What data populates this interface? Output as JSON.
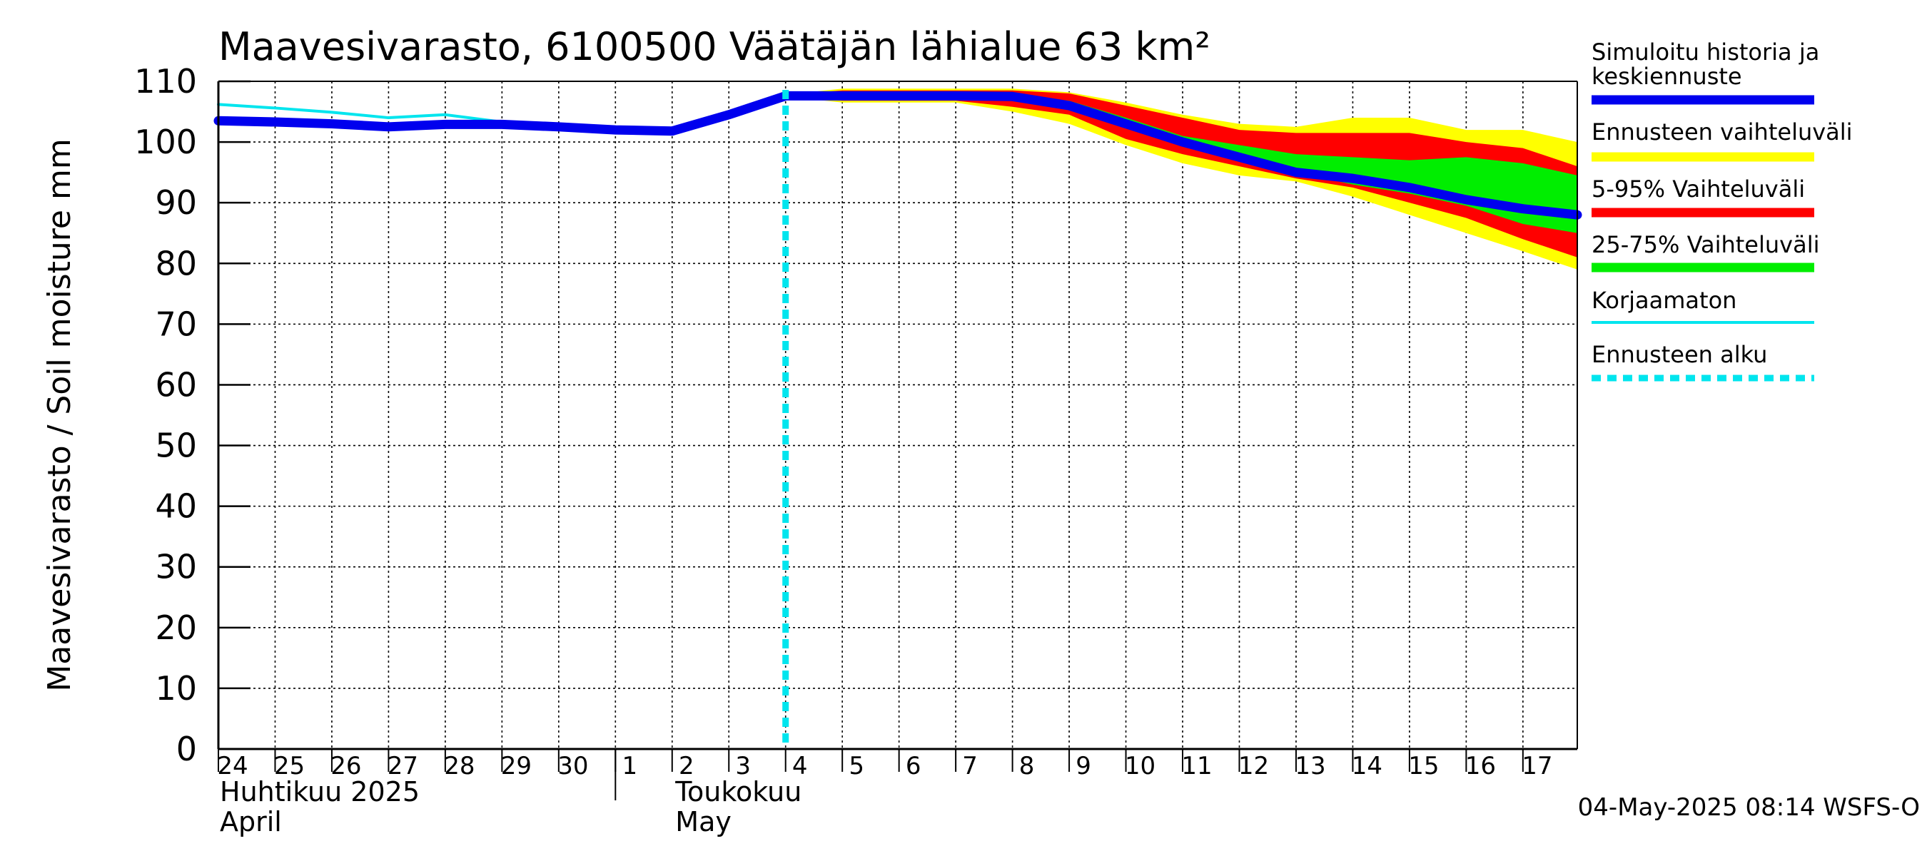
{
  "chart_data": {
    "type": "area",
    "title": "Maavesivarasto, 6100500 Väätäjän lähialue 63 km²",
    "ylabel": "Maavesivarasto / Soil moisture   mm",
    "ylim": [
      0,
      110
    ],
    "yticks": [
      0,
      10,
      20,
      30,
      40,
      50,
      60,
      70,
      80,
      90,
      100,
      110
    ],
    "xlim": [
      "2025-04-24",
      "2025-05-17T23:00"
    ],
    "x_tick_labels": [
      "24",
      "25",
      "26",
      "27",
      "28",
      "29",
      "30",
      "1",
      "2",
      "3",
      "4",
      "5",
      "6",
      "7",
      "8",
      "9",
      "10",
      "11",
      "12",
      "13",
      "14",
      "15",
      "16",
      "17"
    ],
    "month_labels": [
      {
        "fi": "Huhtikuu  2025",
        "en": "April"
      },
      {
        "fi": "Toukokuu",
        "en": "May"
      }
    ],
    "grid": true,
    "legend_position": "right",
    "forecast_start": "2025-05-04",
    "timestamp": "04-May-2025 08:14 WSFS-O",
    "series": [
      {
        "name": "Simuloitu historia ja keskiennuste",
        "color": "#0000ee",
        "x": [
          "2025-04-24",
          "2025-04-25",
          "2025-04-26",
          "2025-04-27",
          "2025-04-28",
          "2025-04-29",
          "2025-04-30",
          "2025-05-01",
          "2025-05-02",
          "2025-05-03",
          "2025-05-04",
          "2025-05-05",
          "2025-05-06",
          "2025-05-07",
          "2025-05-08",
          "2025-05-09",
          "2025-05-10",
          "2025-05-11",
          "2025-05-12",
          "2025-05-13",
          "2025-05-14",
          "2025-05-15",
          "2025-05-16",
          "2025-05-17",
          "2025-05-17T23:00"
        ],
        "y": [
          103.5,
          103.3,
          103.0,
          102.5,
          102.9,
          102.9,
          102.5,
          102.0,
          101.8,
          104.5,
          107.6,
          107.6,
          107.6,
          107.6,
          107.5,
          106.0,
          103.0,
          100.0,
          97.5,
          95.0,
          94.0,
          92.5,
          90.5,
          89.0,
          88.0
        ]
      },
      {
        "name": "Korjaamaton",
        "color": "#00e5ee",
        "x": [
          "2025-04-24",
          "2025-04-25",
          "2025-04-26",
          "2025-04-27",
          "2025-04-28",
          "2025-04-29",
          "2025-04-30",
          "2025-05-01",
          "2025-05-02",
          "2025-05-03",
          "2025-05-04"
        ],
        "y": [
          106.2,
          105.6,
          104.9,
          104.0,
          104.5,
          103.3,
          102.8,
          102.4,
          102.3,
          104.8,
          107.9
        ]
      }
    ],
    "bands": [
      {
        "name": "Ennusteen vaihteluväli",
        "color": "#ffff00",
        "x": [
          "2025-05-04",
          "2025-05-05",
          "2025-05-06",
          "2025-05-07",
          "2025-05-08",
          "2025-05-09",
          "2025-05-10",
          "2025-05-11",
          "2025-05-12",
          "2025-05-13",
          "2025-05-14",
          "2025-05-15",
          "2025-05-16",
          "2025-05-17",
          "2025-05-17T23:00"
        ],
        "lower": [
          107.5,
          106.5,
          106.5,
          106.5,
          105.0,
          103.0,
          99.5,
          96.5,
          94.5,
          93.5,
          91.0,
          88.0,
          85.0,
          82.0,
          79.0
        ],
        "upper": [
          107.8,
          108.8,
          108.8,
          108.8,
          108.8,
          108.2,
          106.5,
          104.5,
          103.0,
          102.5,
          104.0,
          104.0,
          102.0,
          102.0,
          100.0
        ]
      },
      {
        "name": "5-95% Vaihteluväli",
        "color": "#ff0000",
        "x": [
          "2025-05-04",
          "2025-05-05",
          "2025-05-06",
          "2025-05-07",
          "2025-05-08",
          "2025-05-09",
          "2025-05-10",
          "2025-05-11",
          "2025-05-12",
          "2025-05-13",
          "2025-05-14",
          "2025-05-15",
          "2025-05-16",
          "2025-05-17",
          "2025-05-17T23:00"
        ],
        "lower": [
          107.5,
          106.8,
          106.8,
          106.8,
          105.8,
          104.5,
          100.5,
          98.0,
          96.0,
          94.0,
          92.5,
          90.0,
          87.5,
          84.0,
          81.0
        ],
        "upper": [
          107.8,
          108.5,
          108.5,
          108.5,
          108.5,
          108.0,
          106.0,
          104.0,
          102.0,
          101.5,
          101.5,
          101.5,
          100.0,
          99.0,
          96.0
        ]
      },
      {
        "name": "25-75% Vaihteluväli",
        "color": "#00ee00",
        "x": [
          "2025-05-08",
          "2025-05-09",
          "2025-05-10",
          "2025-05-11",
          "2025-05-12",
          "2025-05-13",
          "2025-05-14",
          "2025-05-15",
          "2025-05-16",
          "2025-05-17",
          "2025-05-17T23:00"
        ],
        "lower": [
          107.5,
          105.8,
          102.5,
          99.5,
          97.0,
          95.0,
          93.0,
          91.5,
          89.5,
          86.5,
          85.0
        ],
        "upper": [
          107.8,
          106.8,
          104.0,
          101.0,
          99.5,
          98.0,
          97.5,
          97.0,
          97.5,
          96.5,
          94.5
        ]
      }
    ],
    "legend": [
      {
        "label": "Simuloitu historia ja keskiennuste",
        "color": "#0000ee",
        "style": "thick"
      },
      {
        "label": "Ennusteen vaihteluväli",
        "color": "#ffff00",
        "style": "thick"
      },
      {
        "label": "5-95% Vaihteluväli",
        "color": "#ff0000",
        "style": "thick"
      },
      {
        "label": "25-75% Vaihteluväli",
        "color": "#00ee00",
        "style": "thick"
      },
      {
        "label": "Korjaamaton",
        "color": "#00e5ee",
        "style": "thin"
      },
      {
        "label": "Ennusteen alku",
        "color": "#00e5ee",
        "style": "dashed"
      }
    ]
  }
}
